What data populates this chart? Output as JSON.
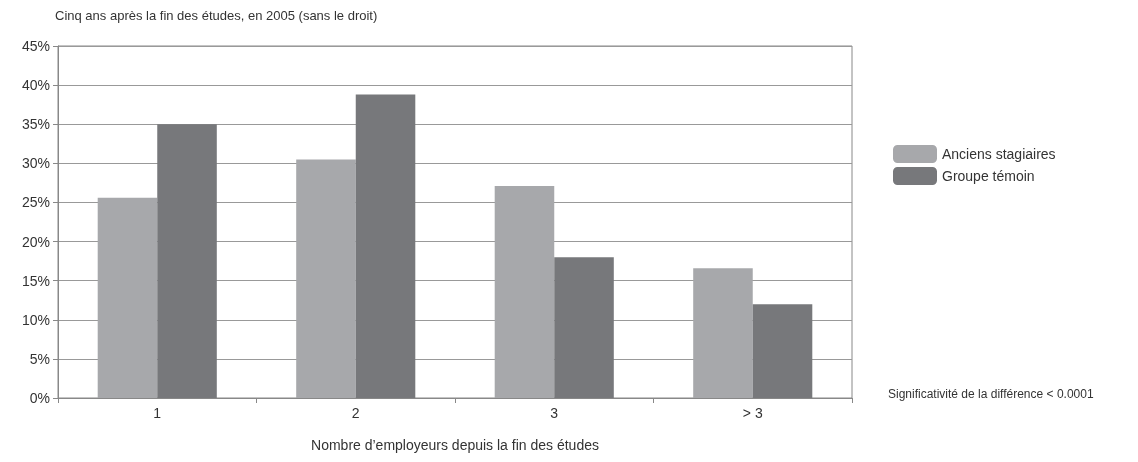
{
  "chart_data": {
    "type": "bar",
    "title": "Cinq ans après la fin des études, en 2005 (sans le droit)",
    "xlabel": "Nombre d’employeurs depuis la fin des études",
    "categories": [
      "1",
      "2",
      "3",
      "> 3"
    ],
    "series": [
      {
        "name": "Anciens stagiaires",
        "color": "#a7a8ab",
        "values": [
          25.6,
          30.5,
          27.1,
          16.6
        ]
      },
      {
        "name": "Groupe témoin",
        "color": "#77787b",
        "values": [
          35.0,
          38.8,
          18.0,
          12.0
        ]
      }
    ],
    "ylim": [
      0,
      45
    ],
    "yticks": [
      {
        "value": 0,
        "label": "0%"
      },
      {
        "value": 5,
        "label": "5%"
      },
      {
        "value": 10,
        "label": "10%"
      },
      {
        "value": 15,
        "label": "15%"
      },
      {
        "value": 20,
        "label": "20%"
      },
      {
        "value": 25,
        "label": "25%"
      },
      {
        "value": 30,
        "label": "30%"
      },
      {
        "value": 35,
        "label": "35%"
      },
      {
        "value": 40,
        "label": "40%"
      },
      {
        "value": 45,
        "label": "45%"
      }
    ],
    "grid": "y",
    "legend": "right",
    "annotations": [
      "Significativité de la différence < 0.0001"
    ]
  }
}
